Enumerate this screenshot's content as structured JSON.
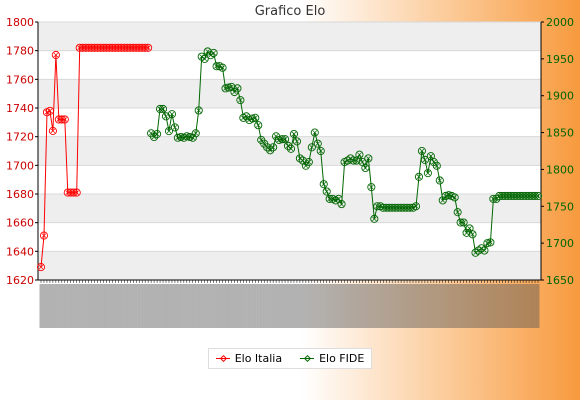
{
  "title": "Grafico Elo",
  "chart_data": {
    "type": "line",
    "title": "Grafico Elo",
    "xlabel": "",
    "y_left": {
      "min": 1620,
      "max": 1800,
      "ticks": [
        1620,
        1640,
        1660,
        1680,
        1700,
        1720,
        1740,
        1760,
        1780,
        1800
      ],
      "color": "#cc0000"
    },
    "y_right": {
      "min": 1650,
      "max": 2000,
      "ticks": [
        1650,
        1700,
        1750,
        1800,
        1850,
        1900,
        1950,
        2000
      ],
      "color": "#006600"
    },
    "grid": true,
    "legend_position": "bottom",
    "x_tick_labels_note": "x-axis labels are rotated and overlapping, illegible",
    "series": [
      {
        "name": "Elo Italia",
        "color": "#ff0000",
        "axis": "left",
        "values": [
          1629,
          1651,
          1737,
          1738,
          1724,
          1777,
          1732,
          1732,
          1732,
          1681,
          1681,
          1681,
          1681,
          1782,
          1782,
          1782,
          1782,
          1782,
          1782,
          1782,
          1782,
          1782,
          1782,
          1782,
          1782,
          1782,
          1782,
          1782,
          1782,
          1782,
          1782,
          1782,
          1782,
          1782,
          1782,
          1782,
          1782
        ]
      },
      {
        "name": "Elo FIDE",
        "color": "#006600",
        "axis": "right",
        "start_index": 37,
        "values": [
          1849,
          1844,
          1848,
          1882,
          1882,
          1872,
          1852,
          1875,
          1857,
          1843,
          1844,
          1843,
          1845,
          1844,
          1843,
          1849,
          1880,
          1953,
          1950,
          1960,
          1955,
          1958,
          1940,
          1940,
          1938,
          1910,
          1911,
          1912,
          1905,
          1910,
          1894,
          1870,
          1872,
          1867,
          1869,
          1870,
          1860,
          1840,
          1835,
          1830,
          1826,
          1830,
          1845,
          1840,
          1841,
          1841,
          1832,
          1828,
          1848,
          1838,
          1815,
          1812,
          1805,
          1810,
          1830,
          1850,
          1835,
          1825,
          1780,
          1770,
          1760,
          1760,
          1758,
          1760,
          1753,
          1810,
          1812,
          1815,
          1812,
          1812,
          1820,
          1810,
          1802,
          1815,
          1776,
          1733,
          1750,
          1750,
          1748,
          1748,
          1748,
          1748,
          1748,
          1748,
          1748,
          1748,
          1748,
          1748,
          1748,
          1750,
          1790,
          1825,
          1813,
          1795,
          1818,
          1810,
          1805,
          1785,
          1758,
          1764,
          1765,
          1764,
          1762,
          1742,
          1728,
          1728,
          1714,
          1720,
          1712,
          1687,
          1690,
          1693,
          1690,
          1700,
          1701,
          1760,
          1760,
          1764,
          1764,
          1764,
          1764,
          1764,
          1764,
          1764,
          1764,
          1764,
          1764,
          1764,
          1764,
          1764,
          1764
        ]
      }
    ]
  }
}
